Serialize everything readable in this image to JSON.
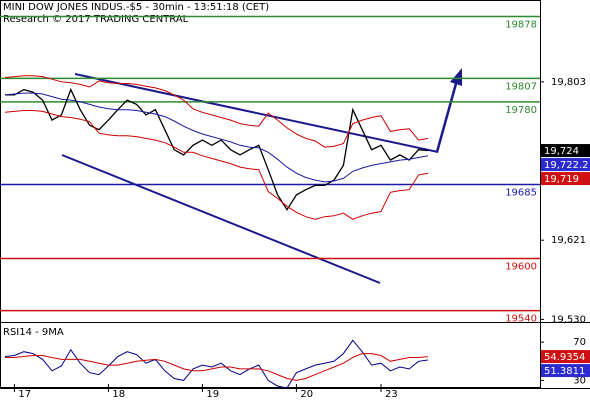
{
  "header": {
    "title": "MINI DOW JONES INDUS.-$5 - 30min - 13:51:18 (CET)",
    "subtitle": "Research © 2017 TRADING CENTRAL"
  },
  "chart_data": [
    {
      "type": "line",
      "categories": [
        null,
        "17",
        null,
        null,
        null,
        null,
        null,
        null,
        null,
        null,
        null,
        "18",
        null,
        null,
        null,
        null,
        null,
        null,
        null,
        null,
        null,
        "19",
        null,
        null,
        null,
        null,
        null,
        null,
        null,
        null,
        null,
        "20",
        null,
        null,
        null,
        null,
        null,
        null,
        null,
        null,
        "23",
        null,
        null,
        null,
        null,
        null
      ],
      "ylim": [
        19527,
        19897
      ],
      "yticks": [
        {
          "value": 19803,
          "label": "19,803"
        },
        {
          "value": 19621,
          "label": "19,621"
        },
        {
          "value": 19530,
          "label": "19,530"
        }
      ],
      "levels": [
        {
          "value": 19878,
          "label": "19878",
          "color": "#2e8b2e"
        },
        {
          "value": 19807,
          "label": "19807",
          "color": "#2e8b2e"
        },
        {
          "value": 19780,
          "label": "19780",
          "color": "#2e8b2e"
        },
        {
          "value": 19685,
          "label": "19685",
          "color": "#1a1aa8"
        },
        {
          "value": 19600,
          "label": "19600",
          "color": "#d01010"
        },
        {
          "value": 19540,
          "label": "19540",
          "color": "#d01010"
        }
      ],
      "price_tags": [
        {
          "value": 19724,
          "label": "19,724",
          "color": "#000000"
        },
        {
          "value": 19722.2,
          "label": "19,722.2",
          "color": "#2b2bd0"
        },
        {
          "value": 19719,
          "label": "19,719",
          "color": "#d01010"
        }
      ],
      "series": [
        {
          "name": "price",
          "color": "#000000",
          "values": [
            19788,
            19788,
            19794,
            19791,
            19782,
            19759,
            19765,
            19794,
            19771,
            19753,
            19748,
            19759,
            19771,
            19782,
            19777,
            19765,
            19771,
            19748,
            19725,
            19719,
            19730,
            19736,
            19730,
            19736,
            19725,
            19719,
            19725,
            19730,
            19702,
            19673,
            19656,
            19673,
            19679,
            19684,
            19684,
            19690,
            19707,
            19771,
            19748,
            19725,
            19730,
            19713,
            19719,
            19713,
            19725,
            19724
          ]
        },
        {
          "name": "ma",
          "color": "#1a1a9c",
          "values": [
            19788,
            19789,
            19790,
            19790,
            19789,
            19786,
            19783,
            19782,
            19780,
            19777,
            19774,
            19772,
            19771,
            19771,
            19770,
            19768,
            19766,
            19763,
            19758,
            19752,
            19747,
            19743,
            19740,
            19737,
            19734,
            19730,
            19728,
            19727,
            19722,
            19714,
            19705,
            19698,
            19693,
            19690,
            19688,
            19689,
            19692,
            19700,
            19704,
            19707,
            19709,
            19711,
            19713,
            19714,
            19716,
            19718
          ]
        },
        {
          "name": "upper",
          "color": "#cc0000",
          "values": [
            19808,
            19809,
            19810,
            19810,
            19809,
            19806,
            19803,
            19802,
            19800,
            19797,
            19804,
            19802,
            19801,
            19801,
            19800,
            19798,
            19796,
            19793,
            19788,
            19782,
            19772,
            19768,
            19765,
            19762,
            19759,
            19755,
            19753,
            19752,
            19767,
            19759,
            19750,
            19743,
            19738,
            19735,
            19728,
            19729,
            19732,
            19755,
            19759,
            19762,
            19764,
            19746,
            19748,
            19749,
            19736,
            19738
          ]
        },
        {
          "name": "lower",
          "color": "#cc0000",
          "values": [
            19768,
            19769,
            19770,
            19770,
            19769,
            19766,
            19763,
            19762,
            19760,
            19757,
            19744,
            19742,
            19741,
            19741,
            19740,
            19738,
            19736,
            19733,
            19728,
            19722,
            19722,
            19718,
            19715,
            19712,
            19709,
            19705,
            19703,
            19702,
            19677,
            19669,
            19660,
            19653,
            19648,
            19645,
            19648,
            19649,
            19652,
            19645,
            19649,
            19652,
            19654,
            19676,
            19678,
            19679,
            19696,
            19698
          ]
        }
      ]
    },
    {
      "type": "line",
      "title": "RSI14 - 9MA",
      "categories": [
        null,
        "17",
        null,
        null,
        null,
        null,
        null,
        null,
        null,
        null,
        null,
        "18",
        null,
        null,
        null,
        null,
        null,
        null,
        null,
        null,
        null,
        "19",
        null,
        null,
        null,
        null,
        null,
        null,
        null,
        null,
        null,
        "20",
        null,
        null,
        null,
        null,
        null,
        null,
        null,
        null,
        "23",
        null,
        null,
        null,
        null,
        null
      ],
      "ylim": [
        22,
        88
      ],
      "yticks": [
        70,
        30
      ],
      "price_tags": [
        {
          "value": 54.9354,
          "label": "54.9354",
          "color": "#d01010"
        },
        {
          "value": 51.3811,
          "label": "51.3811",
          "color": "#2b2bd0"
        }
      ],
      "series": [
        {
          "name": "rsi",
          "color": "#00008b",
          "values": [
            55,
            56,
            60,
            58,
            52,
            40,
            45,
            62,
            48,
            38,
            36,
            45,
            55,
            60,
            57,
            48,
            52,
            40,
            32,
            30,
            42,
            46,
            44,
            48,
            40,
            36,
            42,
            46,
            30,
            24,
            22,
            38,
            42,
            46,
            48,
            50,
            58,
            72,
            60,
            46,
            48,
            40,
            44,
            42,
            50,
            51.3811
          ]
        },
        {
          "name": "rsi-ma",
          "color": "#cc0000",
          "values": [
            54,
            54,
            55,
            56,
            56,
            54,
            52,
            52,
            52,
            50,
            48,
            46,
            46,
            48,
            50,
            51,
            52,
            50,
            46,
            42,
            40,
            40,
            42,
            44,
            44,
            42,
            42,
            42,
            40,
            36,
            32,
            30,
            32,
            36,
            40,
            44,
            48,
            54,
            58,
            58,
            56,
            50,
            52,
            54,
            54,
            54.9354
          ]
        }
      ]
    }
  ]
}
